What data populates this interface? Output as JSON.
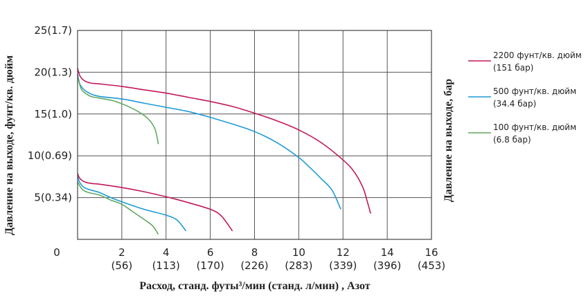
{
  "chart_data": {
    "type": "line",
    "xlabel": "Расход, станд. футы³/мин (станд. л/мин) , Азот",
    "ylabel_left": "Давление на выходе, фунт/кв. дюйм",
    "ylabel_right": "Давление на выходе, бар",
    "xlim": [
      0,
      16
    ],
    "ylim": [
      0,
      25
    ],
    "grid": true,
    "legend_position": "right",
    "x_ticks": [
      {
        "value": 0,
        "label": "0",
        "sub": ""
      },
      {
        "value": 2,
        "label": "2",
        "sub": "(56)"
      },
      {
        "value": 4,
        "label": "4",
        "sub": "(113)"
      },
      {
        "value": 6,
        "label": "6",
        "sub": "(170)"
      },
      {
        "value": 8,
        "label": "8",
        "sub": "(226)"
      },
      {
        "value": 10,
        "label": "10",
        "sub": "(283)"
      },
      {
        "value": 12,
        "label": "12",
        "sub": "(339)"
      },
      {
        "value": 14,
        "label": "14",
        "sub": "(396)"
      },
      {
        "value": 16,
        "label": "16",
        "sub": "(453)"
      }
    ],
    "y_ticks": [
      {
        "value": 5,
        "label": "5(0.34)"
      },
      {
        "value": 10,
        "label": "10(0.69)"
      },
      {
        "value": 15,
        "label": "15(1.0)"
      },
      {
        "value": 20,
        "label": "20(1.3)"
      },
      {
        "value": 25,
        "label": "25(1.7)"
      }
    ],
    "series": [
      {
        "name": "2200 фунт/кв. дюйм",
        "name_line2": "(151 бар)",
        "color": "#c2185b",
        "curves": [
          [
            [
              0,
              20.5
            ],
            [
              0.1,
              19.6
            ],
            [
              0.3,
              19.0
            ],
            [
              0.6,
              18.7
            ],
            [
              1.0,
              18.6
            ],
            [
              2,
              18.3
            ],
            [
              3,
              17.9
            ],
            [
              4,
              17.5
            ],
            [
              5,
              17.0
            ],
            [
              6,
              16.5
            ],
            [
              7,
              15.9
            ],
            [
              8,
              15.1
            ],
            [
              9,
              14.2
            ],
            [
              10,
              13.1
            ],
            [
              11,
              11.6
            ],
            [
              12,
              9.5
            ],
            [
              12.5,
              8.1
            ],
            [
              12.9,
              6.2
            ],
            [
              13.1,
              4.5
            ],
            [
              13.25,
              3.1
            ]
          ],
          [
            [
              0,
              7.9
            ],
            [
              0.1,
              7.3
            ],
            [
              0.3,
              6.9
            ],
            [
              0.6,
              6.7
            ],
            [
              1,
              6.6
            ],
            [
              2,
              6.2
            ],
            [
              3,
              5.7
            ],
            [
              4,
              5.1
            ],
            [
              5,
              4.4
            ],
            [
              6,
              3.6
            ],
            [
              6.5,
              2.8
            ],
            [
              7.0,
              1.0
            ]
          ]
        ]
      },
      {
        "name": "500 фунт/кв. дюйм",
        "name_line2": "(34.4 бар)",
        "color": "#1e9ad6",
        "curves": [
          [
            [
              0,
              19.8
            ],
            [
              0.1,
              18.6
            ],
            [
              0.3,
              17.9
            ],
            [
              0.6,
              17.4
            ],
            [
              1,
              17.1
            ],
            [
              2,
              16.8
            ],
            [
              3,
              16.3
            ],
            [
              4,
              15.8
            ],
            [
              5,
              15.3
            ],
            [
              6,
              14.6
            ],
            [
              7,
              13.8
            ],
            [
              8,
              12.9
            ],
            [
              9,
              11.6
            ],
            [
              10,
              9.8
            ],
            [
              10.5,
              8.6
            ],
            [
              11,
              7.3
            ],
            [
              11.5,
              5.9
            ],
            [
              11.9,
              3.6
            ]
          ],
          [
            [
              0,
              7.6
            ],
            [
              0.1,
              6.8
            ],
            [
              0.3,
              6.2
            ],
            [
              0.6,
              5.9
            ],
            [
              1,
              5.6
            ],
            [
              1.5,
              5.0
            ],
            [
              2,
              4.5
            ],
            [
              3,
              3.6
            ],
            [
              4,
              2.9
            ],
            [
              4.5,
              2.3
            ],
            [
              4.9,
              1.0
            ]
          ]
        ]
      },
      {
        "name": "100 фунт/кв. дюйм",
        "name_line2": "(6.8 бар)",
        "color": "#5fa85f",
        "curves": [
          [
            [
              0,
              19.5
            ],
            [
              0.15,
              18.1
            ],
            [
              0.3,
              17.6
            ],
            [
              0.6,
              17.1
            ],
            [
              1,
              16.9
            ],
            [
              1.6,
              16.6
            ],
            [
              2.2,
              16.0
            ],
            [
              2.8,
              15.2
            ],
            [
              3.2,
              14.4
            ],
            [
              3.5,
              13.2
            ],
            [
              3.65,
              11.4
            ]
          ],
          [
            [
              0,
              6.9
            ],
            [
              0.1,
              6.4
            ],
            [
              0.25,
              5.9
            ],
            [
              0.5,
              5.6
            ],
            [
              1,
              5.3
            ],
            [
              1.5,
              4.7
            ],
            [
              2,
              4.2
            ],
            [
              2.5,
              3.3
            ],
            [
              3,
              2.4
            ],
            [
              3.4,
              1.6
            ],
            [
              3.65,
              0.6
            ]
          ]
        ]
      }
    ]
  }
}
